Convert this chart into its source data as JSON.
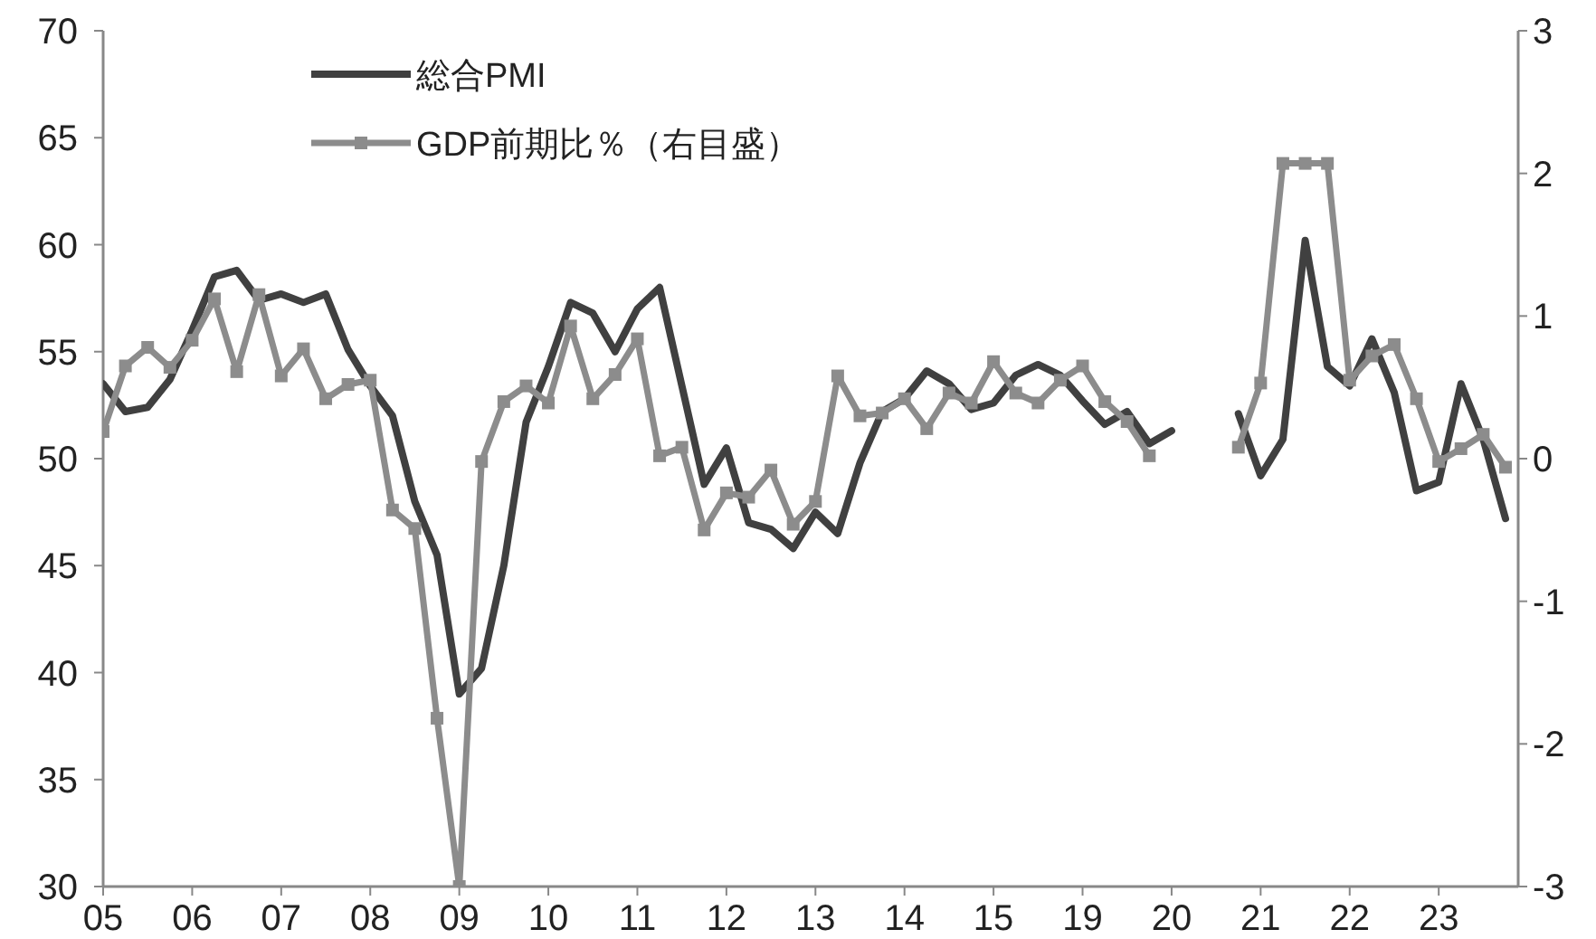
{
  "chart_data": {
    "type": "line",
    "categories": [
      "05",
      null,
      null,
      null,
      "06",
      null,
      null,
      null,
      "07",
      null,
      null,
      null,
      "08",
      null,
      null,
      null,
      "09",
      null,
      null,
      null,
      "10",
      null,
      null,
      null,
      "11",
      null,
      null,
      null,
      "12",
      null,
      null,
      null,
      "13",
      null,
      null,
      null,
      "14",
      null,
      null,
      null,
      "15",
      null,
      null,
      null,
      "19",
      null,
      null,
      null,
      "20",
      null,
      null,
      null,
      "21",
      null,
      null,
      null,
      "22",
      null,
      null,
      null,
      "23",
      null,
      null,
      null
    ],
    "ylim": [
      30,
      70
    ],
    "yticks": [
      30,
      35,
      40,
      45,
      50,
      55,
      60,
      65,
      70
    ],
    "y2lim": [
      -3,
      3
    ],
    "y2ticks": [
      -3,
      -2,
      -1,
      0,
      1,
      2,
      3
    ],
    "legend": "top left",
    "series": [
      {
        "name": "総合PMI",
        "color": "#404040",
        "type": "line",
        "marker": "none",
        "values": [
          53.5,
          52.2,
          52.4,
          53.7,
          56.0,
          58.5,
          58.8,
          57.4,
          57.7,
          57.3,
          57.7,
          55.1,
          53.4,
          52.0,
          48.0,
          45.5,
          39.0,
          40.2,
          45.0,
          51.7,
          54.3,
          57.3,
          56.8,
          55.0,
          57.0,
          58.0,
          53.4,
          48.8,
          50.5,
          47.0,
          46.7,
          45.8,
          47.5,
          46.5,
          49.8,
          52.2,
          52.8,
          54.1,
          53.5,
          52.3,
          52.6,
          53.9,
          54.4,
          53.9,
          52.7,
          51.6,
          52.2,
          50.7,
          51.3,
          null,
          null,
          52.1,
          49.2,
          50.9,
          60.2,
          54.3,
          53.4,
          55.6,
          53.1,
          48.5,
          48.9,
          53.5,
          50.9,
          47.2
        ]
      },
      {
        "name": "GDP前期比％（右目盛）",
        "color": "#8c8c8c",
        "type": "line",
        "marker": "square",
        "axis": "y2",
        "values": [
          0.19,
          0.65,
          0.78,
          0.64,
          0.83,
          1.12,
          0.61,
          1.15,
          0.58,
          0.77,
          0.42,
          0.52,
          0.55,
          -0.36,
          -0.49,
          -1.82,
          -3.0,
          -0.02,
          0.4,
          0.51,
          0.39,
          0.93,
          0.42,
          0.59,
          0.84,
          0.02,
          0.08,
          -0.5,
          -0.24,
          -0.27,
          -0.08,
          -0.46,
          -0.3,
          0.58,
          0.3,
          0.32,
          0.42,
          0.21,
          0.46,
          0.39,
          0.68,
          0.46,
          0.39,
          0.55,
          0.65,
          0.4,
          0.26,
          0.02,
          null,
          null,
          null,
          0.08,
          0.53,
          2.07,
          2.07,
          2.07,
          0.55,
          0.72,
          0.8,
          0.42,
          -0.02,
          0.07,
          0.17,
          -0.06
        ]
      }
    ]
  }
}
